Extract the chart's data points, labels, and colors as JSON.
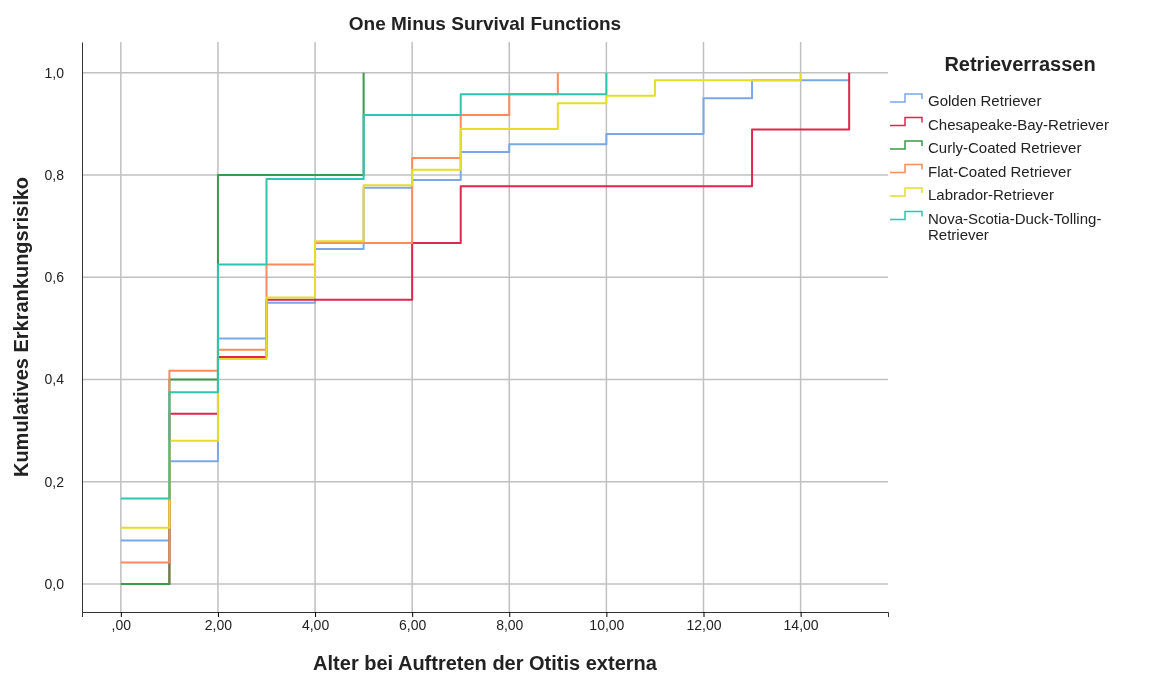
{
  "chart_data": {
    "type": "step",
    "title": "One Minus Survival Functions",
    "xlabel": "Alter bei Auftreten der Otitis externa",
    "ylabel": "Kumulatives Erkrankungsrisiko",
    "legend_title": "Retrieverrassen",
    "legend": "right",
    "grid": true,
    "xlim": [
      -0.8,
      15.8
    ],
    "xticks": [
      {
        "value": 0,
        "label": ",00"
      },
      {
        "value": 2,
        "label": "2,00"
      },
      {
        "value": 4,
        "label": "4,00"
      },
      {
        "value": 6,
        "label": "6,00"
      },
      {
        "value": 8,
        "label": "8,00"
      },
      {
        "value": 10,
        "label": "10,00"
      },
      {
        "value": 12,
        "label": "12,00"
      },
      {
        "value": 14,
        "label": "14,00"
      }
    ],
    "ylim": [
      -0.055,
      1.06
    ],
    "yticks": [
      {
        "value": 0,
        "label": "0,0"
      },
      {
        "value": 0.2,
        "label": "0,2"
      },
      {
        "value": 0.4,
        "label": "0,4"
      },
      {
        "value": 0.6,
        "label": "0,6"
      },
      {
        "value": 0.8,
        "label": "0,8"
      },
      {
        "value": 1,
        "label": "1,0"
      }
    ],
    "series": [
      {
        "name": "Golden Retriever",
        "color": "#7ba7e8",
        "x": [
          0,
          1,
          2,
          3,
          4,
          5,
          6,
          7,
          8,
          10,
          12,
          13,
          15
        ],
        "values": [
          0.085,
          0.24,
          0.48,
          0.55,
          0.655,
          0.775,
          0.79,
          0.845,
          0.86,
          0.88,
          0.95,
          0.985,
          0.985
        ]
      },
      {
        "name": "Chesapeake-Bay-Retriever",
        "color": "#e0264f",
        "x": [
          0,
          1,
          2,
          3,
          6,
          7,
          13,
          15
        ],
        "values": [
          0,
          0.333,
          0.444,
          0.556,
          0.667,
          0.778,
          0.889,
          1.0
        ]
      },
      {
        "name": "Curly-Coated Retriever",
        "color": "#3a9a4a",
        "x": [
          0,
          1,
          2,
          5
        ],
        "values": [
          0,
          0.4,
          0.8,
          1.0
        ]
      },
      {
        "name": "Flat-Coated Retriever",
        "color": "#ff8a5b",
        "x": [
          0,
          1,
          2,
          3,
          4,
          6,
          7,
          8,
          9
        ],
        "values": [
          0.042,
          0.417,
          0.458,
          0.625,
          0.667,
          0.833,
          0.917,
          0.958,
          1.0
        ]
      },
      {
        "name": "Labrador-Retriever",
        "color": "#e8dc2a",
        "x": [
          0,
          1,
          2,
          3,
          4,
          5,
          6,
          7,
          9,
          10,
          11,
          14
        ],
        "values": [
          0.11,
          0.28,
          0.44,
          0.56,
          0.67,
          0.78,
          0.81,
          0.89,
          0.94,
          0.955,
          0.985,
          1.0
        ]
      },
      {
        "name": "Nova-Scotia-Duck-Tolling-Retriever",
        "color": "#2fc4b0",
        "x": [
          0,
          1,
          2,
          3,
          5,
          7,
          10
        ],
        "values": [
          0.167,
          0.375,
          0.625,
          0.792,
          0.917,
          0.958,
          1.0
        ]
      }
    ]
  }
}
